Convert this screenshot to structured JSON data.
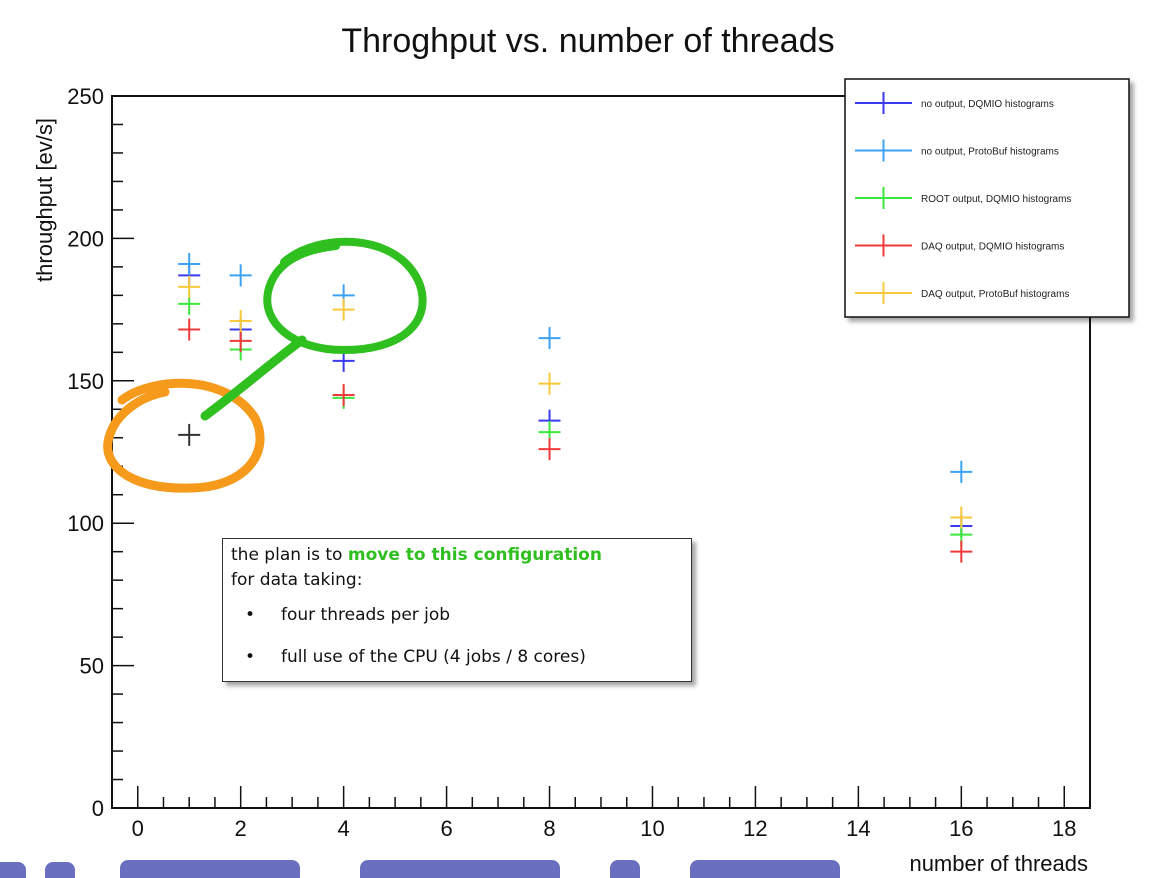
{
  "chart_data": {
    "type": "scatter",
    "title": "Throghput vs. number of threads",
    "xlabel": "number of threads",
    "ylabel": "throughput [ev/s]",
    "xlim": [
      -0.5,
      18.5
    ],
    "ylim": [
      0,
      250
    ],
    "x_ticks": [
      0,
      2,
      4,
      6,
      8,
      10,
      12,
      14,
      16,
      18
    ],
    "y_ticks": [
      0,
      50,
      100,
      150,
      200,
      250
    ],
    "grid": false,
    "legend_position": "top-right",
    "series": [
      {
        "name": "no output, DQMIO histograms",
        "color": "#3a3af0",
        "points": [
          {
            "x": 1,
            "y": 187
          },
          {
            "x": 2,
            "y": 168
          },
          {
            "x": 4,
            "y": 157
          },
          {
            "x": 8,
            "y": 136
          },
          {
            "x": 16,
            "y": 99
          }
        ]
      },
      {
        "name": "no output, ProtoBuf histograms",
        "color": "#3da2f5",
        "points": [
          {
            "x": 1,
            "y": 191
          },
          {
            "x": 2,
            "y": 187
          },
          {
            "x": 4,
            "y": 180
          },
          {
            "x": 8,
            "y": 165
          },
          {
            "x": 16,
            "y": 118
          }
        ]
      },
      {
        "name": "ROOT output, DQMIO histograms",
        "color": "#3de63d",
        "points": [
          {
            "x": 1,
            "y": 177
          },
          {
            "x": 2,
            "y": 161
          },
          {
            "x": 4,
            "y": 144
          },
          {
            "x": 8,
            "y": 132
          },
          {
            "x": 16,
            "y": 96
          }
        ]
      },
      {
        "name": "DAQ output, DQMIO histograms",
        "color": "#f03a3a",
        "points": [
          {
            "x": 1,
            "y": 168
          },
          {
            "x": 2,
            "y": 164
          },
          {
            "x": 4,
            "y": 145
          },
          {
            "x": 8,
            "y": 126
          },
          {
            "x": 16,
            "y": 90
          }
        ]
      },
      {
        "name": "DAQ output, ProtoBuf histograms",
        "color": "#f8c93a",
        "points": [
          {
            "x": 1,
            "y": 183
          },
          {
            "x": 2,
            "y": 171
          },
          {
            "x": 4,
            "y": 175
          },
          {
            "x": 8,
            "y": 149
          },
          {
            "x": 16,
            "y": 102
          }
        ]
      }
    ],
    "extra_points": [
      {
        "x": 1,
        "y": 131,
        "color": "#333333"
      }
    ],
    "annotations": {
      "note_line1_prefix": "the plan is to ",
      "note_line1_highlight": "move to this configuration",
      "note_line2": "for data taking:",
      "bullets": [
        "four threads per job",
        "full use of the CPU (4 jobs / 8 cores)"
      ],
      "orange_circle_color": "#f59a1b",
      "green_circle_color": "#2fbf1f"
    }
  }
}
